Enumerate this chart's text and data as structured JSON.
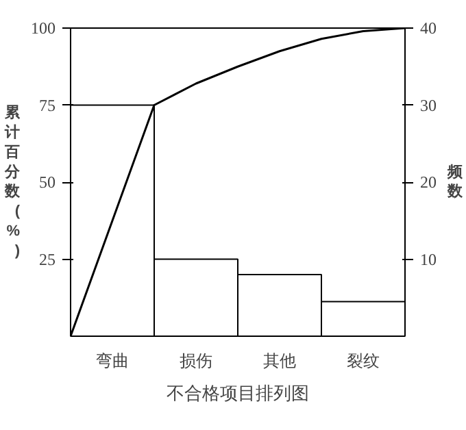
{
  "chart_data": {
    "type": "bar",
    "title": "不合格项目排列图",
    "categories": [
      null,
      "弯曲",
      null,
      "损伤",
      null,
      "其他",
      null,
      "裂纹",
      null
    ],
    "ylabel": "累计百分数(%)",
    "y2label": "频数",
    "ylim": [
      0,
      100
    ],
    "yticks": [
      25,
      50,
      75,
      100
    ],
    "y2lim": [
      0,
      40
    ],
    "y2ticks": [
      10,
      20,
      30,
      40
    ],
    "grid": false,
    "series": [
      {
        "axis": "y2",
        "color": "#000000",
        "values": [
          null,
          30,
          null,
          10,
          null,
          8,
          null,
          4.5,
          null
        ]
      },
      {
        "type": "line",
        "color": "#000000",
        "values": [
          0,
          37.5,
          75,
          82,
          87.5,
          92.5,
          96.5,
          99,
          100
        ]
      }
    ]
  }
}
